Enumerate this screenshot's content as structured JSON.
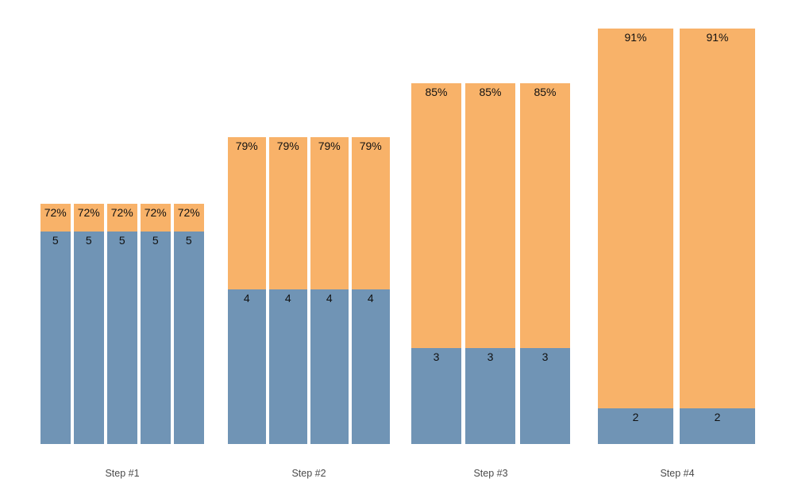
{
  "chart_data": {
    "type": "bar",
    "variant": "stacked-grouped-funnel",
    "title": "",
    "xlabel": "",
    "ylabel": "",
    "grid": false,
    "legend": false,
    "background": "#ffffff",
    "categories": [
      "Step #1",
      "Step #2",
      "Step #3",
      "Step #4"
    ],
    "series": [
      {
        "name": "bottom-value",
        "color": "#7094B5",
        "values": [
          5,
          4,
          3,
          2
        ]
      },
      {
        "name": "top-percent",
        "color": "#F8B269",
        "values": [
          "72%",
          "79%",
          "85%",
          "91%"
        ]
      }
    ],
    "steps": [
      {
        "label": "Step #1",
        "bar_count": 5,
        "value": "5",
        "percent": "72%"
      },
      {
        "label": "Step #2",
        "bar_count": 4,
        "value": "4",
        "percent": "79%"
      },
      {
        "label": "Step #3",
        "bar_count": 3,
        "value": "3",
        "percent": "85%"
      },
      {
        "label": "Step #4",
        "bar_count": 2,
        "value": "2",
        "percent": "91%"
      }
    ]
  },
  "colors": {
    "segment_bottom": "#7094B5",
    "segment_top": "#F8B269",
    "bar_label_text": "#111111",
    "axis_label_text": "#4A4A4A"
  }
}
